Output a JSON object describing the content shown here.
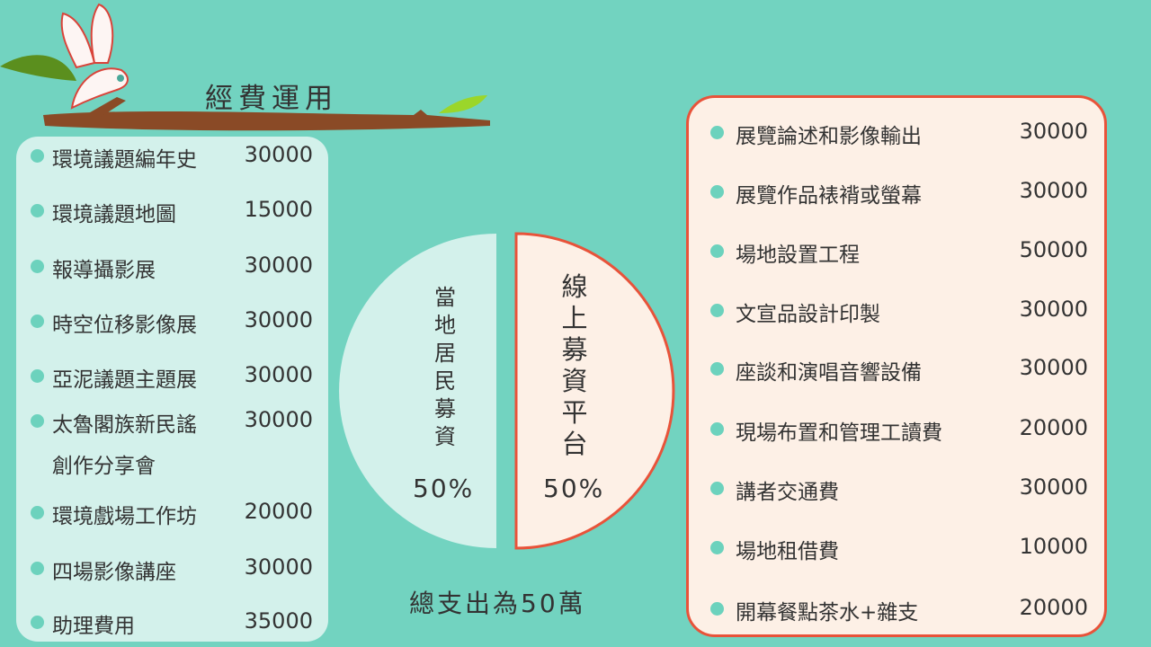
{
  "title": "經費運用",
  "left_items": [
    {
      "label": "環境議題編年史",
      "value": "30000"
    },
    {
      "label": "環境議題地圖",
      "value": "15000"
    },
    {
      "label": "報導攝影展",
      "value": "30000"
    },
    {
      "label": "時空位移影像展",
      "value": "30000"
    },
    {
      "label": "亞泥議題主題展",
      "value": "30000"
    },
    {
      "label": "太魯閣族新民謠",
      "label2": "創作分享會",
      "value": "30000"
    },
    {
      "label": "環境戲場工作坊",
      "value": "20000"
    },
    {
      "label": "四場影像講座",
      "value": "30000"
    },
    {
      "label": "助理費用",
      "value": "35000"
    }
  ],
  "right_items": [
    {
      "label": "展覽論述和影像輸出",
      "value": "30000"
    },
    {
      "label": "展覽作品裱褙或螢幕",
      "value": "30000"
    },
    {
      "label": "場地設置工程",
      "value": "50000"
    },
    {
      "label": "文宣品設計印製",
      "value": "30000"
    },
    {
      "label": "座談和演唱音響設備",
      "value": "30000"
    },
    {
      "label": "現場布置和管理工讀費",
      "value": "20000"
    },
    {
      "label": "講者交通費",
      "value": "30000"
    },
    {
      "label": "場地租借費",
      "value": "10000"
    },
    {
      "label": "開幕餐點茶水+雜支",
      "value": "20000"
    }
  ],
  "chart_data": {
    "type": "pie",
    "slices": [
      {
        "label": "當地居民募資",
        "value": 50,
        "display": "50%",
        "color": "#d3f1eb"
      },
      {
        "label": "線上募資平台",
        "value": 50,
        "display": "50%",
        "color": "#fdf0e6"
      }
    ]
  },
  "total": "總支出為50萬",
  "colors": {
    "background": "#72d3c0",
    "accent": "#e8533a",
    "bullet": "#6cd2bd"
  }
}
